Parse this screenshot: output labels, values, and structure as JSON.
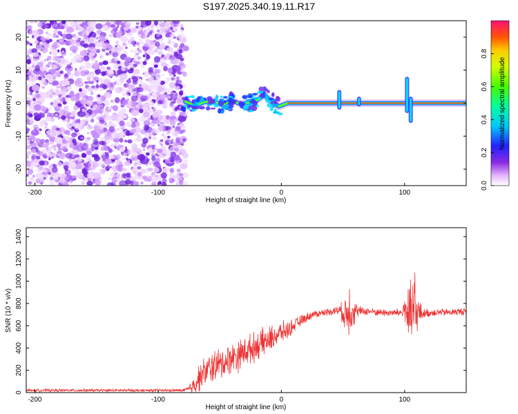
{
  "title": "S197.2025.340.19.11.R17",
  "chart_data": [
    {
      "type": "heatmap",
      "name": "spectrogram",
      "xlabel": "Height of straight line (km)",
      "ylabel": "Frequency (Hz)",
      "xlim": [
        -207,
        150
      ],
      "ylim": [
        -25,
        25
      ],
      "xticks": [
        -200,
        -100,
        0,
        100
      ],
      "yticks": [
        -20,
        -10,
        0,
        10,
        20
      ],
      "colorbar": {
        "label": "Normalized spectral amplitude",
        "range": [
          0,
          1
        ],
        "ticks": [
          0.0,
          0.2,
          0.4,
          0.6,
          0.8
        ]
      },
      "noise_region_x": [
        -207,
        -80
      ],
      "signal_band": [
        {
          "x": -78,
          "freq": 0.5
        },
        {
          "x": -70,
          "freq": -0.8
        },
        {
          "x": -62,
          "freq": 0.4
        },
        {
          "x": -55,
          "freq": 0.6
        },
        {
          "x": -48,
          "freq": -0.5
        },
        {
          "x": -40,
          "freq": 0.8
        },
        {
          "x": -33,
          "freq": -0.3
        },
        {
          "x": -26,
          "freq": 0.2
        },
        {
          "x": -20,
          "freq": 0.9
        },
        {
          "x": -14,
          "freq": 2.4
        },
        {
          "x": -8,
          "freq": 0.6
        },
        {
          "x": -2,
          "freq": -1.0
        },
        {
          "x": 5,
          "freq": 0.0
        },
        {
          "x": 15,
          "freq": 0.0
        },
        {
          "x": 45,
          "freq": 0.0
        },
        {
          "x": 60,
          "freq": 0.0
        },
        {
          "x": 100,
          "freq": 0.0
        },
        {
          "x": 150,
          "freq": 0.0
        }
      ],
      "spikes": [
        {
          "x": 47,
          "fmin": -2,
          "fmax": 4
        },
        {
          "x": 63,
          "fmin": -1,
          "fmax": 2
        },
        {
          "x": 102,
          "fmin": -3,
          "fmax": 8
        },
        {
          "x": 105,
          "fmin": -6,
          "fmax": 2
        }
      ]
    },
    {
      "type": "line",
      "name": "snr",
      "xlabel": "Height of straight line (km)",
      "ylabel": "SNR (10 * v/v)",
      "xlim": [
        -207,
        150
      ],
      "ylim": [
        0,
        1480
      ],
      "xticks": [
        -200,
        -100,
        0,
        100
      ],
      "yticks": [
        0,
        200,
        400,
        600,
        800,
        1000,
        1200,
        1400
      ],
      "color": "#ee3333",
      "series": [
        {
          "name": "SNR",
          "x": [
            -207,
            -180,
            -150,
            -120,
            -100,
            -80,
            -75,
            -70,
            -65,
            -60,
            -55,
            -50,
            -45,
            -40,
            -35,
            -30,
            -25,
            -20,
            -15,
            -10,
            -5,
            0,
            5,
            10,
            15,
            20,
            25,
            30,
            40,
            48,
            52,
            55,
            58,
            62,
            70,
            80,
            90,
            98,
            100,
            103,
            105,
            107,
            108,
            110,
            115,
            125,
            135,
            150
          ],
          "y": [
            20,
            20,
            20,
            20,
            20,
            20,
            30,
            80,
            160,
            200,
            240,
            250,
            280,
            320,
            330,
            370,
            390,
            420,
            450,
            470,
            510,
            540,
            560,
            600,
            640,
            670,
            700,
            710,
            730,
            740,
            700,
            760,
            740,
            730,
            730,
            720,
            715,
            720,
            760,
            700,
            650,
            720,
            700,
            720,
            710,
            720,
            720,
            730
          ],
          "amp": [
            15,
            15,
            15,
            15,
            15,
            15,
            40,
            120,
            150,
            160,
            180,
            170,
            170,
            160,
            170,
            160,
            160,
            150,
            150,
            140,
            130,
            110,
            100,
            70,
            60,
            50,
            40,
            40,
            40,
            60,
            220,
            300,
            200,
            60,
            40,
            40,
            40,
            50,
            150,
            350,
            380,
            500,
            700,
            200,
            50,
            40,
            40,
            40
          ]
        }
      ]
    }
  ]
}
